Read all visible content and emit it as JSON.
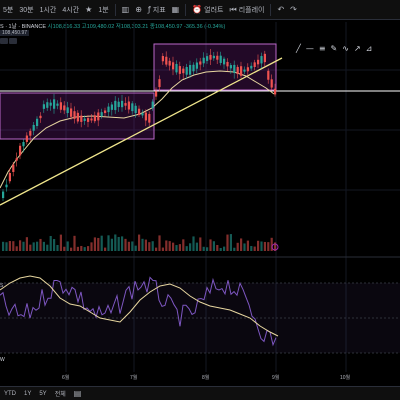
{
  "toolbar": {
    "timeframes": [
      "5분",
      "30분",
      "1시간",
      "4시간",
      "1분"
    ],
    "indicators_label": "지표",
    "alert_label": "얼러트",
    "replay_label": "리플레이"
  },
  "legend": {
    "symbol": "S · 1날 · BINANCE",
    "ohlc": "시108,816.33  고109,480.02  저108,303.21  종108,450.97  -365.36 (-0.34%)",
    "price_tag": "108,450.97"
  },
  "x_axis": [
    "6월",
    "7월",
    "8월",
    "9월",
    "10월"
  ],
  "rsi_label": "S",
  "w_label": "W",
  "bottom": {
    "ranges": [
      "YTD",
      "1Y",
      "5Y",
      "전체"
    ]
  },
  "colors": {
    "up": "#26a69a",
    "down": "#ef5350",
    "box": "#9c27b0",
    "trend": "#f0e68c",
    "ma": "#e8d7a0",
    "rsi": "#7e57c2"
  },
  "icons": [
    "favorite-star-icon",
    "compare-plus-icon",
    "indicators-icon",
    "templates-icon",
    "alert-icon",
    "replay-icon",
    "undo-icon",
    "redo-icon",
    "calendar-icon"
  ]
}
